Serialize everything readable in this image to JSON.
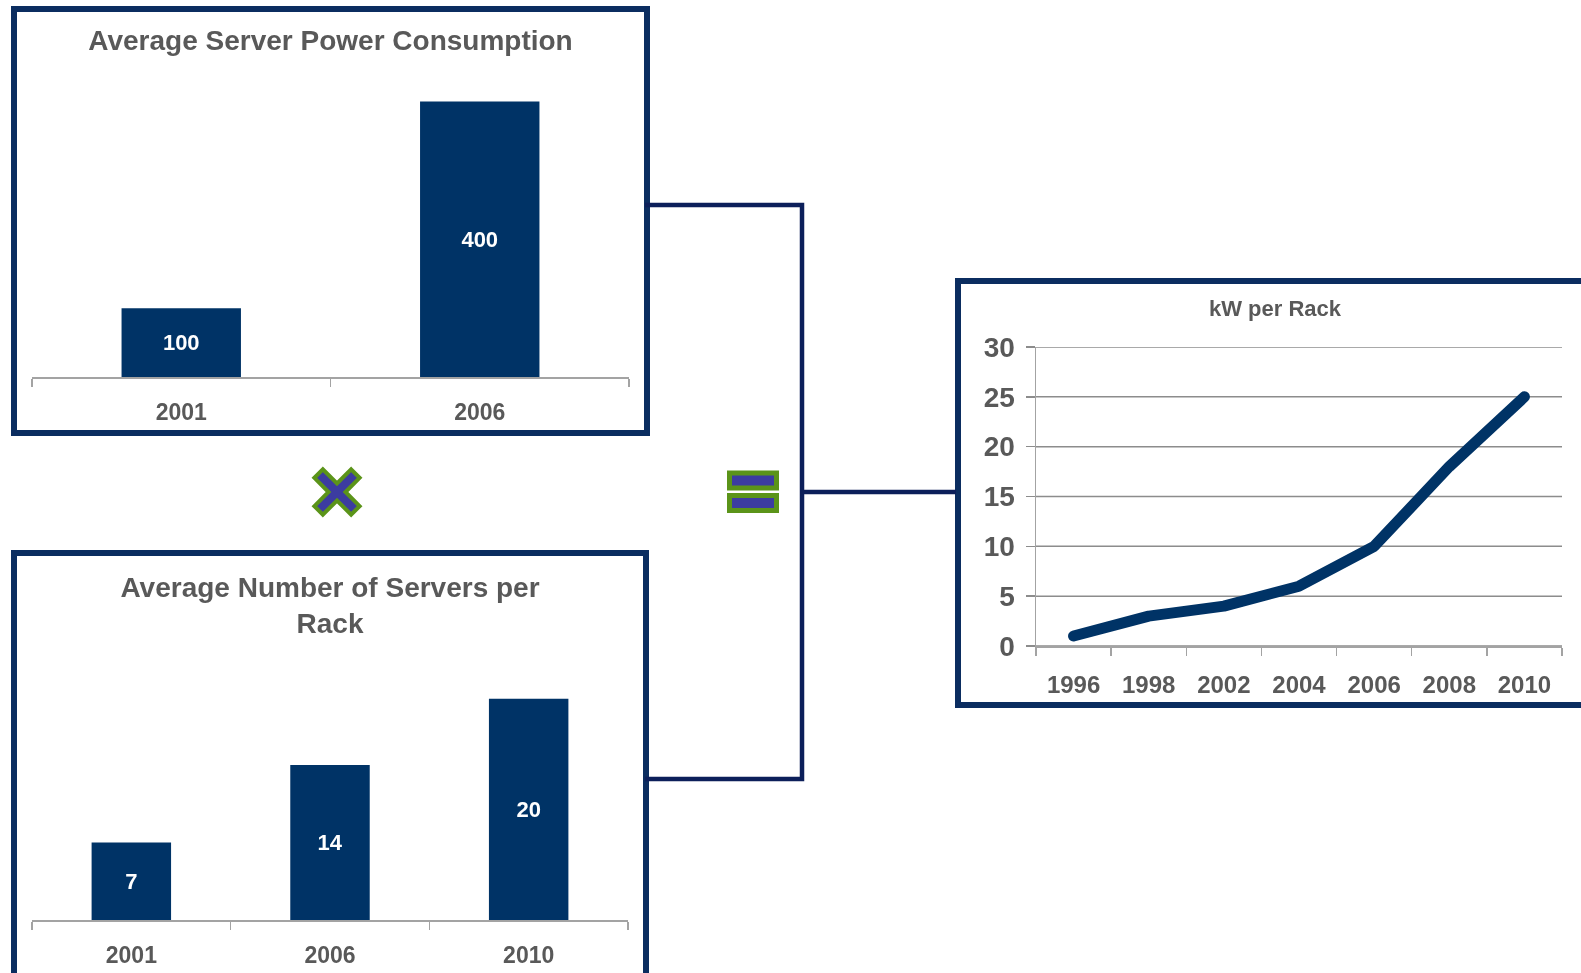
{
  "chart_data": [
    {
      "type": "bar",
      "title": "Average Server Power Consumption",
      "categories": [
        "2001",
        "2006"
      ],
      "values": [
        100,
        400
      ],
      "color": "#003366",
      "data_labels": true,
      "tick_labels": "x"
    },
    {
      "type": "bar",
      "title": "Average Number of Servers per Rack",
      "categories": [
        "2001",
        "2006",
        "2010"
      ],
      "values": [
        7,
        14,
        20
      ],
      "color": "#003366",
      "data_labels": true,
      "tick_labels": "x"
    },
    {
      "type": "line",
      "title": "kW per Rack",
      "categories": [
        "1996",
        "1998",
        "2002",
        "2004",
        "2006",
        "2008",
        "2010"
      ],
      "values": [
        1,
        3,
        4,
        6,
        10,
        18,
        25
      ],
      "color": "#003366",
      "ylim": [
        0,
        30
      ],
      "yticks": [
        0,
        5,
        10,
        15,
        20,
        25,
        30
      ],
      "grid": "y",
      "marker": "none",
      "line_style": "solid"
    }
  ]
}
